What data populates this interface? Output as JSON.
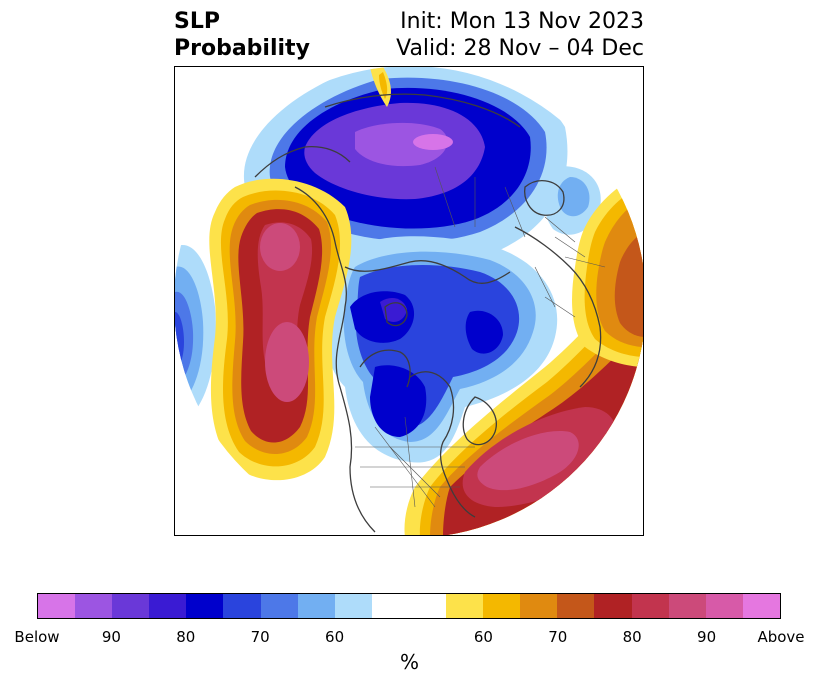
{
  "header": {
    "title_line1": "SLP",
    "title_line2": "Probability",
    "init": "Init: Mon 13 Nov 2023",
    "valid": "Valid: 28 Nov – 04 Dec"
  },
  "colorbar": {
    "colors": [
      "#d774e8",
      "#9c55e2",
      "#6a38d8",
      "#3a1bd3",
      "#0000cc",
      "#2a44dd",
      "#4d78e8",
      "#72aff2",
      "#aedcfa",
      "#ffffff",
      "#fde24a",
      "#f4b800",
      "#e08a10",
      "#c4571a",
      "#b02224",
      "#c2344e",
      "#cc4a7a",
      "#d75aa8",
      "#e577e0"
    ],
    "tick_labels": [
      "Below",
      "90",
      "80",
      "70",
      "60",
      "60",
      "70",
      "80",
      "90",
      "Above"
    ],
    "label": "%"
  },
  "map": {
    "projection": "north-polar-stereographic",
    "variable": "sea-level-pressure-probability",
    "anomalies": [
      {
        "region": "North Pacific / Gulf of Alaska",
        "category": "above",
        "max_level": "90"
      },
      {
        "region": "Western North Atlantic off US East Coast",
        "category": "above",
        "max_level": "90"
      },
      {
        "region": "Eastern Europe / Western Russia",
        "category": "above",
        "max_level": "70"
      },
      {
        "region": "Central Asia / Siberia",
        "category": "below",
        "max_level": "Below"
      },
      {
        "region": "Arctic Ocean / Eurasian Arctic",
        "category": "below",
        "max_level": "80"
      },
      {
        "region": "Central Canada / Hudson Bay",
        "category": "below",
        "max_level": "80"
      },
      {
        "region": "Western Pacific near Japan",
        "category": "below",
        "max_level": "70"
      }
    ]
  }
}
